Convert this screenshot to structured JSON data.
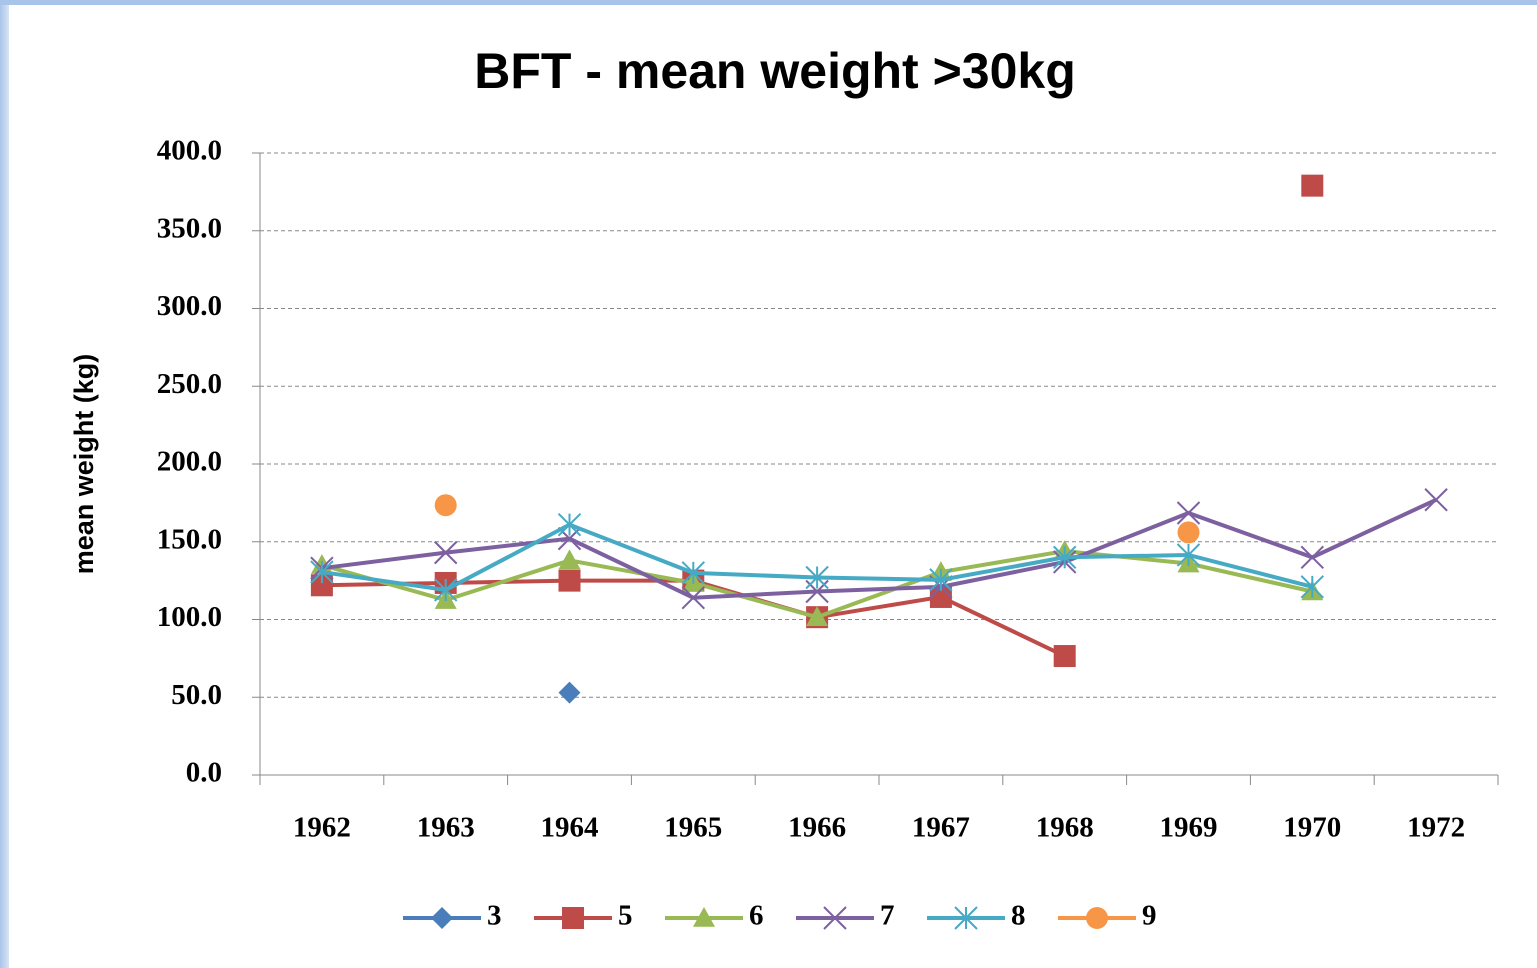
{
  "chart_data": {
    "type": "line",
    "title": "BFT - mean weight   >30kg",
    "y_label": "mean weight (kg)",
    "categories": [
      "1962",
      "1963",
      "1964",
      "1965",
      "1966",
      "1967",
      "1968",
      "1969",
      "1970",
      "1972"
    ],
    "series": [
      {
        "name": "3",
        "color": "#4a7ebb",
        "marker": "diamond",
        "values": [
          null,
          null,
          53,
          null,
          null,
          null,
          null,
          null,
          null,
          null
        ]
      },
      {
        "name": "5",
        "color": "#be4b48",
        "marker": "square",
        "values": [
          122,
          123.5,
          125,
          125,
          101.5,
          114.5,
          76.5,
          null,
          379,
          null
        ]
      },
      {
        "name": "6",
        "color": "#98b954",
        "marker": "triangle",
        "values": [
          135,
          112.5,
          138,
          123.5,
          101.5,
          130.5,
          144,
          136,
          118,
          null
        ]
      },
      {
        "name": "7",
        "color": "#7d60a0",
        "marker": "x",
        "values": [
          133,
          143,
          152,
          114,
          118,
          121,
          137,
          168.5,
          140,
          177
        ]
      },
      {
        "name": "8",
        "color": "#46aac5",
        "marker": "star",
        "values": [
          130.5,
          119,
          161,
          130,
          127,
          125.5,
          140,
          141.5,
          121,
          null
        ]
      },
      {
        "name": "9",
        "color": "#f79646",
        "marker": "circle",
        "values": [
          null,
          173.5,
          null,
          null,
          null,
          null,
          null,
          156,
          null,
          null
        ]
      }
    ],
    "ylim": [
      0,
      400
    ],
    "yticks": [
      {
        "value": 0,
        "label": "0.0"
      },
      {
        "value": 50,
        "label": "50.0"
      },
      {
        "value": 100,
        "label": "100.0"
      },
      {
        "value": 150,
        "label": "150.0"
      },
      {
        "value": 200,
        "label": "200.0"
      },
      {
        "value": 250,
        "label": "250.0"
      },
      {
        "value": 300,
        "label": "300.0"
      },
      {
        "value": 350,
        "label": "350.0"
      },
      {
        "value": 400,
        "label": "400.0"
      }
    ],
    "grid": true,
    "legend": "bottom"
  }
}
